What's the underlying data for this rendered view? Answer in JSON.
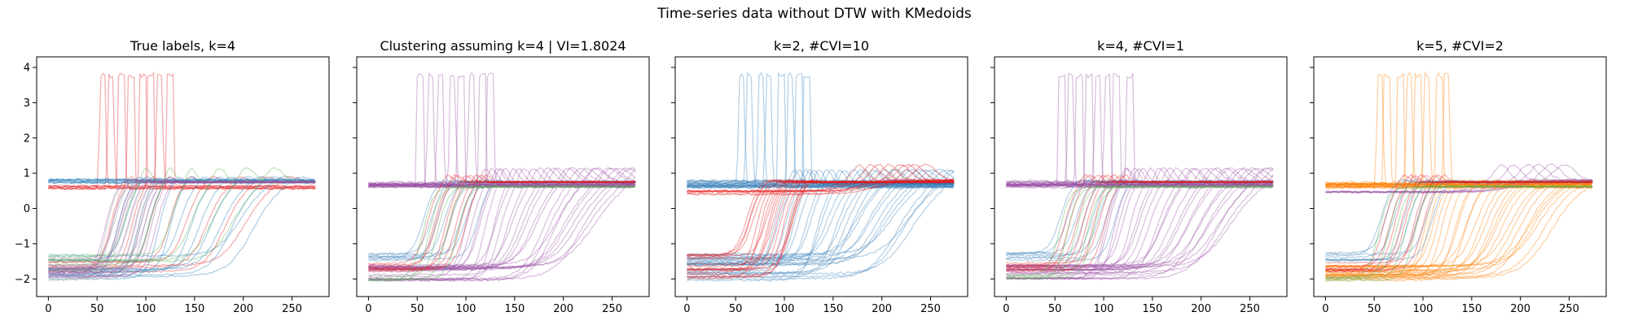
{
  "figure": {
    "suptitle": "Time-series data without DTW with KMedoids"
  },
  "colors": {
    "tab_blue": "#1f77b4",
    "set1_red": "#e41a1c",
    "set1_blue": "#377eb8",
    "set1_green": "#4daf4a",
    "set1_purple": "#984ea3",
    "set1_orange": "#ff7f00",
    "set1_gray": "#999999"
  },
  "chart_data": [
    {
      "type": "line",
      "title": "True labels, k=4",
      "xlabel": "",
      "ylabel": "",
      "xlim": [
        -12,
        288
      ],
      "ylim": [
        -2.5,
        4.3
      ],
      "x_ticks": [
        0,
        50,
        100,
        150,
        200,
        250
      ],
      "y_ticks": [
        -2,
        -1,
        0,
        1,
        2,
        3,
        4
      ],
      "show_y_tick_labels": true,
      "grid": false,
      "series": [
        {
          "color": "#e41a1c",
          "pattern": "spike",
          "count": 8,
          "onset": [
            50,
            120
          ],
          "low": [
            0.55,
            0.65
          ],
          "peak": 3.85
        },
        {
          "color": "#e41a1c",
          "pattern": "step",
          "count": 8,
          "onset": [
            65,
            200
          ],
          "low": [
            -1.8,
            -1.5
          ],
          "high": 0.75,
          "overshoot": 0.2
        },
        {
          "color": "#1f77b4",
          "pattern": "flat",
          "count": 10,
          "onset": [
            0,
            0
          ],
          "low": [
            0.72,
            0.82
          ]
        },
        {
          "color": "#1f77b4",
          "pattern": "step",
          "count": 14,
          "onset": [
            70,
            210
          ],
          "low": [
            -2.05,
            -1.3
          ],
          "high": 0.75,
          "overshoot": 0.2
        },
        {
          "color": "#4daf4a",
          "pattern": "step",
          "count": 6,
          "onset": [
            80,
            190
          ],
          "low": [
            -1.6,
            -1.3
          ],
          "high": 0.75,
          "overshoot": 0.45
        },
        {
          "color": "#999999",
          "pattern": "step",
          "count": 10,
          "onset": [
            60,
            100
          ],
          "low": [
            -2.05,
            -1.3
          ],
          "high": 0.75,
          "overshoot": 0.1
        },
        {
          "color": "#984ea3",
          "pattern": "step",
          "count": 10,
          "onset": [
            60,
            110
          ],
          "low": [
            -1.95,
            -1.6
          ],
          "high": 0.75,
          "overshoot": 0.1
        }
      ]
    },
    {
      "type": "line",
      "title": "Clustering assuming k=4 | VI=1.8024",
      "xlabel": "",
      "ylabel": "",
      "xlim": [
        -12,
        288
      ],
      "ylim": [
        -2.5,
        4.3
      ],
      "x_ticks": [
        0,
        50,
        100,
        150,
        200,
        250
      ],
      "y_ticks": [
        -2,
        -1,
        0,
        1,
        2,
        3,
        4
      ],
      "show_y_tick_labels": false,
      "grid": false,
      "series": [
        {
          "color": "#984ea3",
          "pattern": "spike",
          "count": 8,
          "onset": [
            50,
            120
          ],
          "low": [
            0.6,
            0.7
          ],
          "peak": 3.85
        },
        {
          "color": "#984ea3",
          "pattern": "flat",
          "count": 14,
          "onset": [
            0,
            0
          ],
          "low": [
            0.6,
            0.78
          ]
        },
        {
          "color": "#984ea3",
          "pattern": "step",
          "count": 26,
          "onset": [
            100,
            230
          ],
          "low": [
            -2.05,
            -1.6
          ],
          "high": 0.75,
          "overshoot": 0.45
        },
        {
          "color": "#377eb8",
          "pattern": "step",
          "count": 8,
          "onset": [
            55,
            110
          ],
          "low": [
            -1.5,
            -1.25
          ],
          "high": 0.75,
          "overshoot": 0.1
        },
        {
          "color": "#e41a1c",
          "pattern": "step",
          "count": 8,
          "onset": [
            60,
            100
          ],
          "low": [
            -1.8,
            -1.5
          ],
          "high": 0.75,
          "overshoot": 0.25
        },
        {
          "color": "#4daf4a",
          "pattern": "step",
          "count": 5,
          "onset": [
            55,
            90
          ],
          "low": [
            -2.05,
            -1.9
          ],
          "high": 0.62,
          "overshoot": 0.0
        }
      ]
    },
    {
      "type": "line",
      "title": "k=2, #CVI=10",
      "xlabel": "",
      "ylabel": "",
      "xlim": [
        -12,
        288
      ],
      "ylim": [
        -2.5,
        4.3
      ],
      "x_ticks": [
        0,
        50,
        100,
        150,
        200,
        250
      ],
      "y_ticks": [
        -2,
        -1,
        0,
        1,
        2,
        3,
        4
      ],
      "show_y_tick_labels": false,
      "grid": false,
      "series": [
        {
          "color": "#377eb8",
          "pattern": "spike",
          "count": 8,
          "onset": [
            50,
            120
          ],
          "low": [
            0.6,
            0.7
          ],
          "peak": 3.85
        },
        {
          "color": "#377eb8",
          "pattern": "flat",
          "count": 14,
          "onset": [
            0,
            0
          ],
          "low": [
            0.58,
            0.8
          ]
        },
        {
          "color": "#377eb8",
          "pattern": "step",
          "count": 28,
          "onset": [
            90,
            230
          ],
          "low": [
            -2.05,
            -1.3
          ],
          "high": 0.7,
          "overshoot": 0.45
        },
        {
          "color": "#e41a1c",
          "pattern": "step",
          "count": 18,
          "onset": [
            60,
            110
          ],
          "low": [
            -2.05,
            -1.3
          ],
          "high": 0.75,
          "overshoot": 0.1
        },
        {
          "color": "#e41a1c",
          "pattern": "step",
          "count": 8,
          "onset": [
            150,
            200
          ],
          "low": [
            0.4,
            0.5
          ],
          "high": 0.8,
          "overshoot": 0.45
        }
      ]
    },
    {
      "type": "line",
      "title": "k=4, #CVI=1",
      "xlabel": "",
      "ylabel": "",
      "xlim": [
        -12,
        288
      ],
      "ylim": [
        -2.5,
        4.3
      ],
      "x_ticks": [
        0,
        50,
        100,
        150,
        200,
        250
      ],
      "y_ticks": [
        -2,
        -1,
        0,
        1,
        2,
        3,
        4
      ],
      "show_y_tick_labels": false,
      "grid": false,
      "series": [
        {
          "color": "#984ea3",
          "pattern": "spike",
          "count": 8,
          "onset": [
            50,
            120
          ],
          "low": [
            0.6,
            0.7
          ],
          "peak": 3.85
        },
        {
          "color": "#984ea3",
          "pattern": "flat",
          "count": 14,
          "onset": [
            0,
            0
          ],
          "low": [
            0.6,
            0.78
          ]
        },
        {
          "color": "#984ea3",
          "pattern": "step",
          "count": 26,
          "onset": [
            100,
            230
          ],
          "low": [
            -2.05,
            -1.6
          ],
          "high": 0.75,
          "overshoot": 0.45
        },
        {
          "color": "#377eb8",
          "pattern": "step",
          "count": 8,
          "onset": [
            55,
            110
          ],
          "low": [
            -1.5,
            -1.25
          ],
          "high": 0.75,
          "overshoot": 0.1
        },
        {
          "color": "#e41a1c",
          "pattern": "step",
          "count": 8,
          "onset": [
            60,
            100
          ],
          "low": [
            -1.8,
            -1.5
          ],
          "high": 0.75,
          "overshoot": 0.25
        },
        {
          "color": "#4daf4a",
          "pattern": "step",
          "count": 5,
          "onset": [
            55,
            90
          ],
          "low": [
            -2.05,
            -1.9
          ],
          "high": 0.62,
          "overshoot": 0.0
        }
      ]
    },
    {
      "type": "line",
      "title": "k=5, #CVI=2",
      "xlabel": "",
      "ylabel": "",
      "xlim": [
        -12,
        288
      ],
      "ylim": [
        -2.5,
        4.3
      ],
      "x_ticks": [
        0,
        50,
        100,
        150,
        200,
        250
      ],
      "y_ticks": [
        -2,
        -1,
        0,
        1,
        2,
        3,
        4
      ],
      "show_y_tick_labels": false,
      "grid": false,
      "series": [
        {
          "color": "#ff7f00",
          "pattern": "spike",
          "count": 8,
          "onset": [
            50,
            120
          ],
          "low": [
            0.6,
            0.7
          ],
          "peak": 3.85
        },
        {
          "color": "#ff7f00",
          "pattern": "flat",
          "count": 14,
          "onset": [
            0,
            0
          ],
          "low": [
            0.58,
            0.78
          ]
        },
        {
          "color": "#ff7f00",
          "pattern": "step",
          "count": 26,
          "onset": [
            100,
            230
          ],
          "low": [
            -2.05,
            -1.6
          ],
          "high": 0.75,
          "overshoot": 0.1
        },
        {
          "color": "#984ea3",
          "pattern": "step",
          "count": 6,
          "onset": [
            150,
            200
          ],
          "low": [
            0.45,
            0.5
          ],
          "high": 0.8,
          "overshoot": 0.45
        },
        {
          "color": "#377eb8",
          "pattern": "step",
          "count": 8,
          "onset": [
            55,
            110
          ],
          "low": [
            -1.5,
            -1.25
          ],
          "high": 0.75,
          "overshoot": 0.1
        },
        {
          "color": "#e41a1c",
          "pattern": "step",
          "count": 8,
          "onset": [
            60,
            100
          ],
          "low": [
            -1.8,
            -1.5
          ],
          "high": 0.75,
          "overshoot": 0.25
        },
        {
          "color": "#4daf4a",
          "pattern": "step",
          "count": 5,
          "onset": [
            55,
            90
          ],
          "low": [
            -2.05,
            -1.9
          ],
          "high": 0.62,
          "overshoot": 0.0
        }
      ]
    }
  ]
}
